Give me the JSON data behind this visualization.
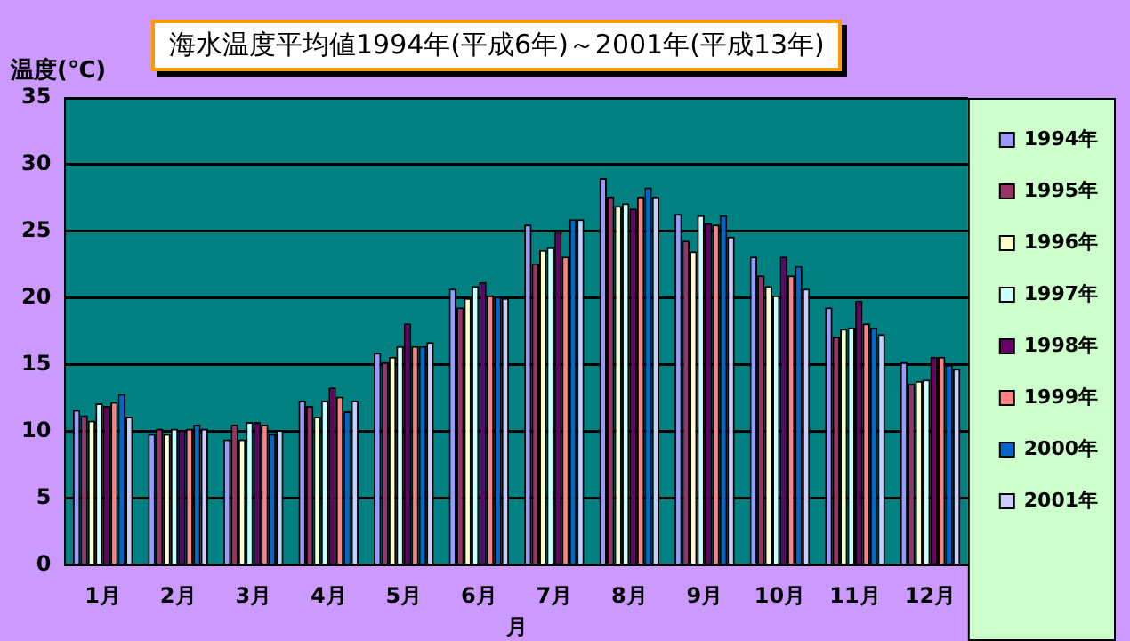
{
  "chart_data": {
    "type": "bar",
    "title": "海水温度平均値1994年(平成6年)～2001年(平成13年)",
    "xlabel": "月",
    "ylabel": "温度(℃)",
    "categories": [
      "1月",
      "2月",
      "3月",
      "4月",
      "5月",
      "6月",
      "7月",
      "8月",
      "9月",
      "10月",
      "11月",
      "12月"
    ],
    "series": [
      {
        "name": "1994年",
        "color": "#9999ff",
        "values": [
          11.6,
          9.8,
          9.4,
          12.3,
          15.9,
          20.7,
          25.5,
          29.0,
          26.3,
          23.1,
          19.3,
          15.2
        ]
      },
      {
        "name": "1995年",
        "color": "#993366",
        "values": [
          11.2,
          10.2,
          10.5,
          11.9,
          15.2,
          19.3,
          22.6,
          27.6,
          24.3,
          21.7,
          17.1,
          13.6
        ]
      },
      {
        "name": "1996年",
        "color": "#ffffcc",
        "values": [
          10.8,
          9.8,
          9.4,
          11.1,
          15.6,
          20.0,
          23.6,
          26.9,
          23.5,
          20.9,
          17.7,
          13.8
        ]
      },
      {
        "name": "1997年",
        "color": "#ccffff",
        "values": [
          12.1,
          10.2,
          10.7,
          12.3,
          16.4,
          20.9,
          23.8,
          27.1,
          26.2,
          20.2,
          17.8,
          13.9
        ]
      },
      {
        "name": "1998年",
        "color": "#660066",
        "values": [
          11.9,
          10.1,
          10.7,
          13.3,
          18.1,
          21.2,
          25.0,
          26.7,
          25.6,
          23.1,
          19.8,
          15.6
        ]
      },
      {
        "name": "1999年",
        "color": "#ff8080",
        "values": [
          12.2,
          10.2,
          10.5,
          12.6,
          16.4,
          20.2,
          23.1,
          27.6,
          25.5,
          21.7,
          18.1,
          15.6
        ]
      },
      {
        "name": "2000年",
        "color": "#0066cc",
        "values": [
          12.8,
          10.5,
          9.8,
          11.5,
          16.4,
          20.1,
          25.9,
          28.3,
          26.2,
          22.4,
          17.8,
          15.0
        ]
      },
      {
        "name": "2001年",
        "color": "#ccccff",
        "values": [
          11.1,
          10.2,
          10.1,
          12.3,
          16.7,
          20.0,
          25.9,
          27.6,
          24.6,
          20.7,
          17.3,
          14.7
        ]
      }
    ],
    "ylim": [
      0,
      35
    ],
    "yticks": [
      0,
      5,
      10,
      15,
      20,
      25,
      30,
      35
    ],
    "grid": "y",
    "legend": "right"
  }
}
